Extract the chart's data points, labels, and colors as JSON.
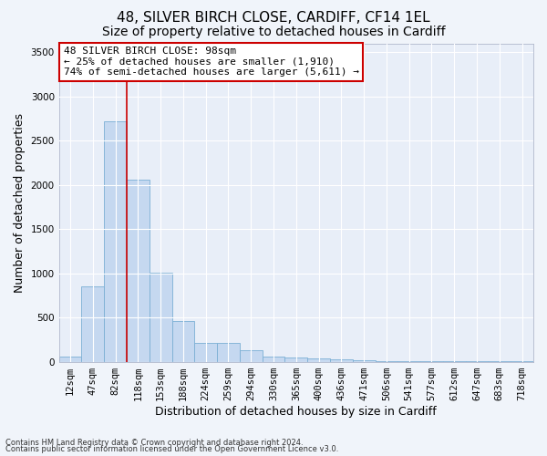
{
  "title_line1": "48, SILVER BIRCH CLOSE, CARDIFF, CF14 1EL",
  "title_line2": "Size of property relative to detached houses in Cardiff",
  "xlabel": "Distribution of detached houses by size in Cardiff",
  "ylabel": "Number of detached properties",
  "footnote1": "Contains HM Land Registry data © Crown copyright and database right 2024.",
  "footnote2": "Contains public sector information licensed under the Open Government Licence v3.0.",
  "annotation_line1": "48 SILVER BIRCH CLOSE: 98sqm",
  "annotation_line2": "← 25% of detached houses are smaller (1,910)",
  "annotation_line3": "74% of semi-detached houses are larger (5,611) →",
  "bar_color": "#c5d8f0",
  "bar_edge_color": "#7bafd4",
  "background_color": "#e8eef8",
  "grid_color": "#ffffff",
  "fig_background_color": "#f0f4fa",
  "red_line_color": "#cc0000",
  "categories": [
    "12sqm",
    "47sqm",
    "82sqm",
    "118sqm",
    "153sqm",
    "188sqm",
    "224sqm",
    "259sqm",
    "294sqm",
    "330sqm",
    "365sqm",
    "400sqm",
    "436sqm",
    "471sqm",
    "506sqm",
    "541sqm",
    "577sqm",
    "612sqm",
    "647sqm",
    "683sqm",
    "718sqm"
  ],
  "values": [
    60,
    855,
    2720,
    2060,
    1005,
    455,
    215,
    215,
    130,
    60,
    50,
    40,
    30,
    20,
    10,
    10,
    5,
    5,
    5,
    3,
    3
  ],
  "ylim": [
    0,
    3600
  ],
  "yticks": [
    0,
    500,
    1000,
    1500,
    2000,
    2500,
    3000,
    3500
  ],
  "red_line_x": 2.5,
  "title_fontsize": 11,
  "subtitle_fontsize": 10,
  "axis_label_fontsize": 9,
  "tick_fontsize": 7.5,
  "annotation_fontsize": 8
}
